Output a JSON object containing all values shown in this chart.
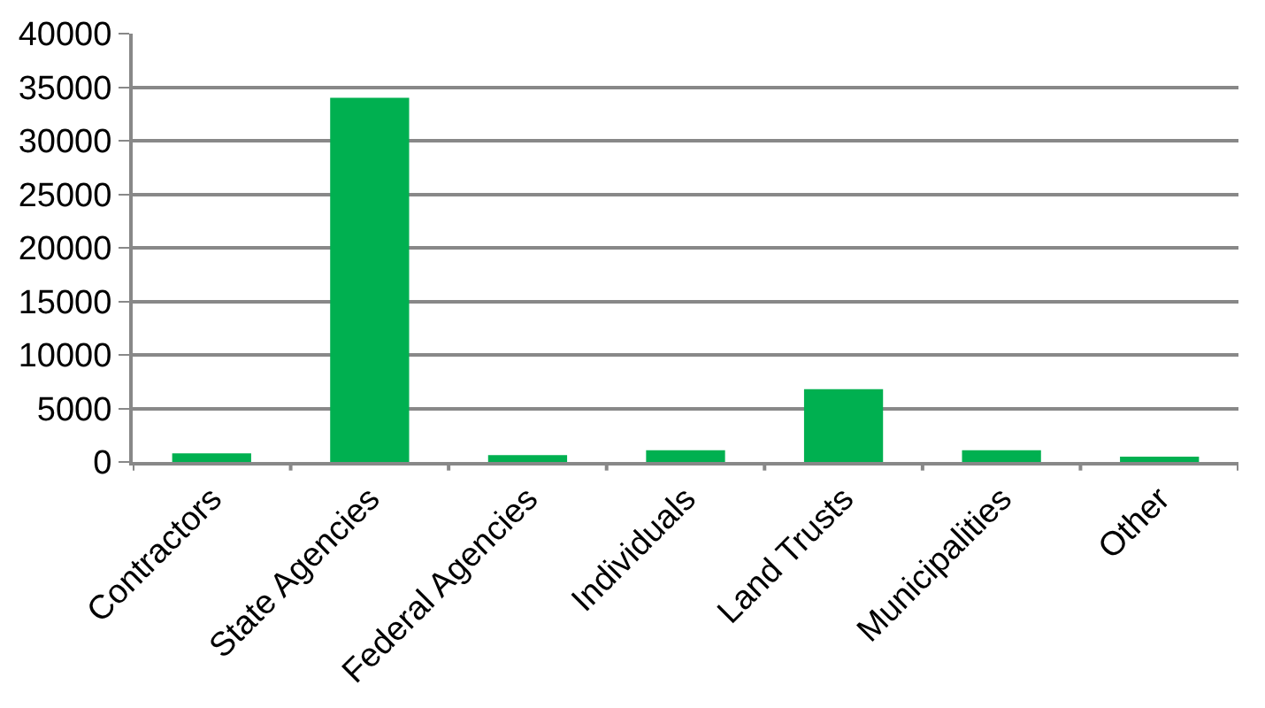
{
  "chart_data": {
    "type": "bar",
    "categories": [
      "Contractors",
      "State Agencies",
      "Federal Agencies",
      "Individuals",
      "Land Trusts",
      "Municipalities",
      "Other"
    ],
    "values": [
      800,
      34000,
      650,
      1100,
      6800,
      1100,
      500
    ],
    "color": "#00b050",
    "ylim": [
      0,
      40000
    ],
    "yticks": [
      0,
      5000,
      10000,
      15000,
      20000,
      25000,
      30000,
      35000,
      40000
    ],
    "grid": "y"
  }
}
